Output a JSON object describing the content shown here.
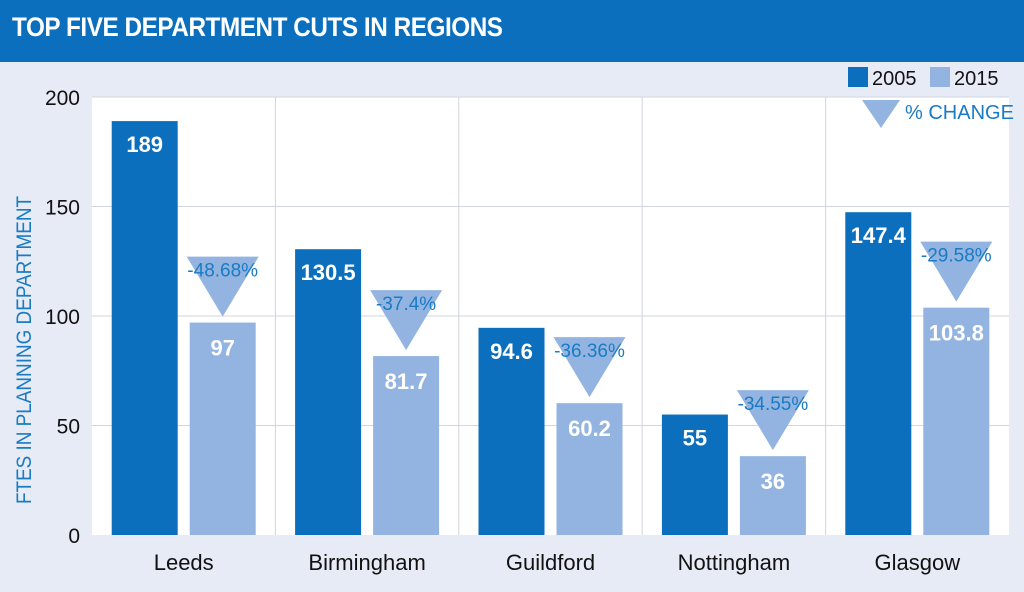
{
  "colors": {
    "banner": "#0b6fbd",
    "background": "#e6ebf5",
    "plot_background": "#ffffff",
    "series_2005": "#0b6fbd",
    "series_2015": "#93b4e0",
    "change_text": "#1a7bc4",
    "axis_text": "#111111"
  },
  "chart_data": {
    "type": "bar",
    "title": "TOP FIVE DEPARTMENT CUTS IN REGIONS",
    "xlabel": "",
    "ylabel": "FTES IN PLANNING DEPARTMENT",
    "ylim": [
      0,
      200
    ],
    "yticks": [
      0,
      50,
      100,
      150,
      200
    ],
    "grid": true,
    "legend_position": "top-right",
    "categories": [
      "Leeds",
      "Birmingham",
      "Guildford",
      "Nottingham",
      "Glasgow"
    ],
    "series": [
      {
        "name": "2005",
        "values": [
          189,
          130.5,
          94.6,
          55,
          147.4
        ],
        "labels": [
          "189",
          "130.5",
          "94.6",
          "55",
          "147.4"
        ]
      },
      {
        "name": "2015",
        "values": [
          97,
          81.7,
          60.2,
          36,
          103.8
        ],
        "labels": [
          "97",
          "81.7",
          "60.2",
          "36",
          "103.8"
        ]
      }
    ],
    "percent_change": {
      "name": "% CHANGE",
      "labels": [
        "-48.68%",
        "-37.4%",
        "-36.36%",
        "-34.55%",
        "-29.58%"
      ]
    }
  }
}
